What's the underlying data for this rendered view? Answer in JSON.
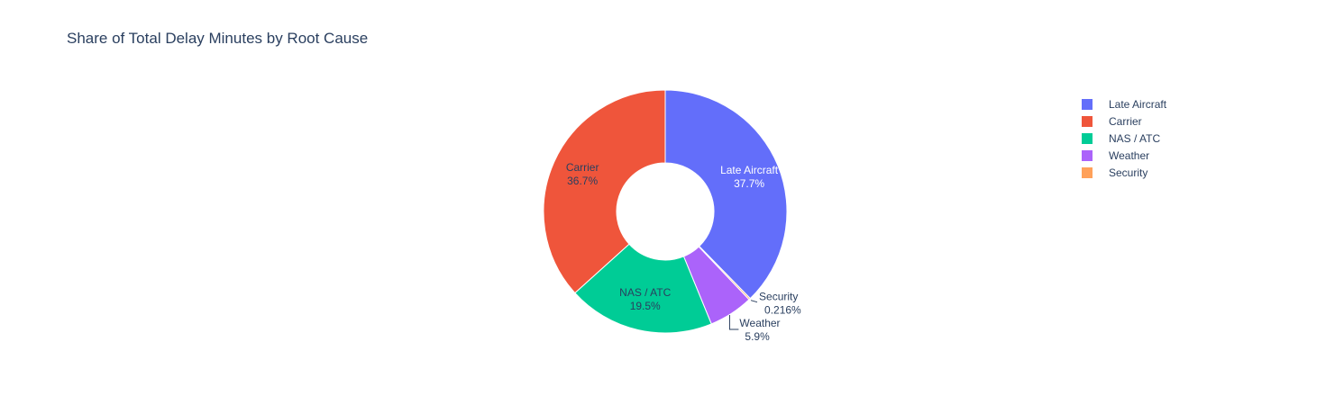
{
  "chart_data": {
    "type": "pie",
    "hole": true,
    "title": "Share of Total Delay Minutes by Root Cause",
    "legend_position": "right",
    "slices": [
      {
        "label": "Late Aircraft",
        "value": 37.7,
        "display": "37.7%",
        "color": "#636efa",
        "label_color": "#ffffff"
      },
      {
        "label": "Security",
        "value": 0.216,
        "display": "0.216%",
        "color": "#ffa15a",
        "label_color": "#2a3f5f"
      },
      {
        "label": "Weather",
        "value": 5.9,
        "display": "5.9%",
        "color": "#ab63fa",
        "label_color": "#2a3f5f"
      },
      {
        "label": "NAS / ATC",
        "value": 19.5,
        "display": "19.5%",
        "color": "#00cc96",
        "label_color": "#2a3f5f"
      },
      {
        "label": "Carrier",
        "value": 36.7,
        "display": "36.7%",
        "color": "#ef553b",
        "label_color": "#2a3f5f"
      }
    ],
    "legend": [
      {
        "label": "Late Aircraft",
        "color": "#636efa"
      },
      {
        "label": "Carrier",
        "color": "#ef553b"
      },
      {
        "label": "NAS / ATC",
        "color": "#00cc96"
      },
      {
        "label": "Weather",
        "color": "#ab63fa"
      },
      {
        "label": "Security",
        "color": "#ffa15a"
      }
    ]
  }
}
